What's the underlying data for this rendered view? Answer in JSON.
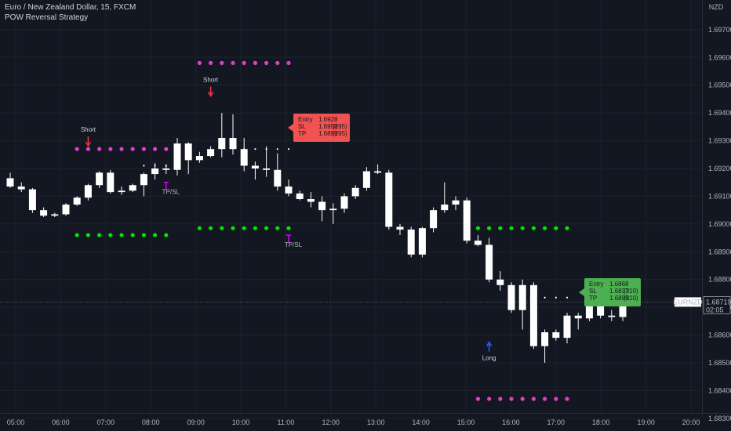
{
  "header": {
    "title": "Euro / New Zealand Dollar, 15, FXCM",
    "indicator": "POW Reversal Strategy"
  },
  "axis": {
    "currency": "NZD",
    "symbol_tag": "EURNZD",
    "last_price": "1.68719",
    "countdown": "02:05"
  },
  "colors": {
    "background": "#131722",
    "candle_body": "#ffffff",
    "grid": "#1e222d",
    "short_box": "#f05350",
    "long_box": "#4caf50",
    "magenta": "#e040c8",
    "green": "#00e600",
    "short_arrow": "#f23645",
    "long_arrow": "#2962ff",
    "tp_marker": "#d500f9"
  },
  "chart_data": {
    "type": "candlestick",
    "y_ticks": [
      "1.69700",
      "1.69600",
      "1.69500",
      "1.69400",
      "1.69300",
      "1.69200",
      "1.69100",
      "1.69000",
      "1.68900",
      "1.68800",
      "1.68700",
      "1.68600",
      "1.68500",
      "1.68400",
      "1.68300"
    ],
    "x_ticks": [
      "05:00",
      "06:00",
      "07:00",
      "08:00",
      "09:00",
      "10:00",
      "11:00",
      "12:00",
      "13:00",
      "14:00",
      "15:00",
      "16:00",
      "17:00",
      "18:00",
      "19:00",
      "20:00"
    ],
    "ylim": [
      1.6826,
      1.6979
    ],
    "candles": [
      {
        "o": 1.69165,
        "h": 1.69185,
        "l": 1.6913,
        "c": 1.69135
      },
      {
        "o": 1.69135,
        "h": 1.6915,
        "l": 1.69115,
        "c": 1.69125
      },
      {
        "o": 1.69125,
        "h": 1.6913,
        "l": 1.6904,
        "c": 1.6905
      },
      {
        "o": 1.6905,
        "h": 1.6906,
        "l": 1.69025,
        "c": 1.6903
      },
      {
        "o": 1.6903,
        "h": 1.6904,
        "l": 1.69025,
        "c": 1.69035
      },
      {
        "o": 1.69035,
        "h": 1.69075,
        "l": 1.6903,
        "c": 1.6907
      },
      {
        "o": 1.6907,
        "h": 1.691,
        "l": 1.69065,
        "c": 1.69095
      },
      {
        "o": 1.69095,
        "h": 1.69145,
        "l": 1.69085,
        "c": 1.6914
      },
      {
        "o": 1.6914,
        "h": 1.6919,
        "l": 1.6913,
        "c": 1.69185
      },
      {
        "o": 1.69185,
        "h": 1.69195,
        "l": 1.6911,
        "c": 1.69115
      },
      {
        "o": 1.69115,
        "h": 1.69135,
        "l": 1.69105,
        "c": 1.6912
      },
      {
        "o": 1.6912,
        "h": 1.69145,
        "l": 1.69115,
        "c": 1.6914
      },
      {
        "o": 1.6914,
        "h": 1.69185,
        "l": 1.691,
        "c": 1.6918
      },
      {
        "o": 1.6918,
        "h": 1.6922,
        "l": 1.6916,
        "c": 1.692
      },
      {
        "o": 1.692,
        "h": 1.69215,
        "l": 1.6918,
        "c": 1.69195
      },
      {
        "o": 1.69195,
        "h": 1.6931,
        "l": 1.69175,
        "c": 1.6929
      },
      {
        "o": 1.6929,
        "h": 1.69295,
        "l": 1.6918,
        "c": 1.6923
      },
      {
        "o": 1.6923,
        "h": 1.6926,
        "l": 1.6922,
        "c": 1.69245
      },
      {
        "o": 1.69245,
        "h": 1.6928,
        "l": 1.6924,
        "c": 1.6927
      },
      {
        "o": 1.6927,
        "h": 1.694,
        "l": 1.6924,
        "c": 1.6931
      },
      {
        "o": 1.6931,
        "h": 1.69395,
        "l": 1.6925,
        "c": 1.6927
      },
      {
        "o": 1.6927,
        "h": 1.6931,
        "l": 1.6919,
        "c": 1.6921
      },
      {
        "o": 1.6921,
        "h": 1.69225,
        "l": 1.6916,
        "c": 1.692
      },
      {
        "o": 1.692,
        "h": 1.6928,
        "l": 1.6917,
        "c": 1.69195
      },
      {
        "o": 1.69195,
        "h": 1.69255,
        "l": 1.6912,
        "c": 1.69135
      },
      {
        "o": 1.69135,
        "h": 1.6916,
        "l": 1.691,
        "c": 1.6911
      },
      {
        "o": 1.6911,
        "h": 1.6912,
        "l": 1.69085,
        "c": 1.6909
      },
      {
        "o": 1.6909,
        "h": 1.69115,
        "l": 1.6906,
        "c": 1.6908
      },
      {
        "o": 1.6908,
        "h": 1.691,
        "l": 1.6901,
        "c": 1.6905
      },
      {
        "o": 1.6905,
        "h": 1.69075,
        "l": 1.69,
        "c": 1.69055
      },
      {
        "o": 1.69055,
        "h": 1.6911,
        "l": 1.6904,
        "c": 1.691
      },
      {
        "o": 1.691,
        "h": 1.6914,
        "l": 1.6909,
        "c": 1.6913
      },
      {
        "o": 1.6913,
        "h": 1.69205,
        "l": 1.6912,
        "c": 1.6919
      },
      {
        "o": 1.6919,
        "h": 1.69215,
        "l": 1.6918,
        "c": 1.69185
      },
      {
        "o": 1.69185,
        "h": 1.69195,
        "l": 1.6898,
        "c": 1.6899
      },
      {
        "o": 1.6899,
        "h": 1.69,
        "l": 1.6896,
        "c": 1.6898
      },
      {
        "o": 1.6898,
        "h": 1.6899,
        "l": 1.6888,
        "c": 1.6889
      },
      {
        "o": 1.6889,
        "h": 1.6899,
        "l": 1.6888,
        "c": 1.68985
      },
      {
        "o": 1.68985,
        "h": 1.6906,
        "l": 1.6897,
        "c": 1.6905
      },
      {
        "o": 1.6905,
        "h": 1.6915,
        "l": 1.6904,
        "c": 1.6907
      },
      {
        "o": 1.6907,
        "h": 1.691,
        "l": 1.6905,
        "c": 1.69085
      },
      {
        "o": 1.69085,
        "h": 1.69095,
        "l": 1.6893,
        "c": 1.6894
      },
      {
        "o": 1.6894,
        "h": 1.6896,
        "l": 1.6892,
        "c": 1.68925
      },
      {
        "o": 1.68925,
        "h": 1.6895,
        "l": 1.6879,
        "c": 1.688
      },
      {
        "o": 1.688,
        "h": 1.6883,
        "l": 1.6876,
        "c": 1.6878
      },
      {
        "o": 1.6878,
        "h": 1.6879,
        "l": 1.6868,
        "c": 1.6869
      },
      {
        "o": 1.6869,
        "h": 1.688,
        "l": 1.6862,
        "c": 1.6878
      },
      {
        "o": 1.6878,
        "h": 1.6879,
        "l": 1.6855,
        "c": 1.6856
      },
      {
        "o": 1.6856,
        "h": 1.6862,
        "l": 1.685,
        "c": 1.6861
      },
      {
        "o": 1.6861,
        "h": 1.6862,
        "l": 1.6858,
        "c": 1.6859
      },
      {
        "o": 1.6859,
        "h": 1.6868,
        "l": 1.6857,
        "c": 1.6867
      },
      {
        "o": 1.6867,
        "h": 1.6868,
        "l": 1.6862,
        "c": 1.6866
      },
      {
        "o": 1.6866,
        "h": 1.6875,
        "l": 1.6865,
        "c": 1.6874
      },
      {
        "o": 1.6874,
        "h": 1.6875,
        "l": 1.6866,
        "c": 1.6867
      },
      {
        "o": 1.6867,
        "h": 1.6869,
        "l": 1.6865,
        "c": 1.68665
      },
      {
        "o": 1.68665,
        "h": 1.6874,
        "l": 1.6865,
        "c": 1.6873
      }
    ],
    "dot_rows": [
      {
        "role": "short-tp-1",
        "color": "magenta",
        "price": 1.6927,
        "from": 6,
        "to": 14
      },
      {
        "role": "short-tp-2",
        "color": "magenta",
        "price": 1.6958,
        "from": 17,
        "to": 25
      },
      {
        "role": "long-sl-1",
        "color": "green",
        "price": 1.6896,
        "from": 6,
        "to": 14
      },
      {
        "role": "long-sl-2",
        "color": "green",
        "price": 1.68985,
        "from": 17,
        "to": 25
      },
      {
        "role": "long-tp",
        "color": "green",
        "price": 1.68985,
        "from": 42,
        "to": 50
      },
      {
        "role": "long-sl",
        "color": "magenta",
        "price": 1.6837,
        "from": 42,
        "to": 50
      }
    ],
    "small_dots": [
      {
        "price": 1.6921,
        "from": 12,
        "to": 14
      },
      {
        "price": 1.6927,
        "from": 21,
        "to": 25
      },
      {
        "price": 1.68735,
        "from": 45,
        "to": 50
      }
    ],
    "signals": [
      {
        "type": "short",
        "label": "Short",
        "index": 7,
        "price": 1.6927
      },
      {
        "type": "short",
        "label": "Short",
        "index": 18,
        "price": 1.6945
      },
      {
        "type": "long",
        "label": "Long",
        "index": 43,
        "price": 1.6858
      }
    ],
    "tp_markers": [
      {
        "label": "TP/SL",
        "index": 14,
        "price": 1.6915
      },
      {
        "label": "TP/SL",
        "index": 25,
        "price": 1.6896
      }
    ],
    "short_box": {
      "entry_label": "Entry",
      "entry": "1.6928",
      "sl_label": "SL",
      "sl": "1.6958",
      "sl_pips": "(295)",
      "tp_label": "TP",
      "tp": "1.6899",
      "tp_pips": "(295)"
    },
    "long_box": {
      "entry_label": "Entry",
      "entry": "1.6868",
      "sl_label": "SL",
      "sl": "1.6837",
      "sl_pips": "(310)",
      "tp_label": "TP",
      "tp": "1.6899",
      "tp_pips": "(310)"
    }
  }
}
